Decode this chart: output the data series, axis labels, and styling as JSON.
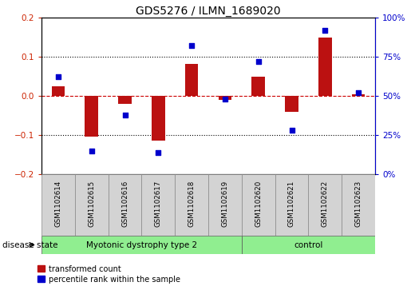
{
  "title": "GDS5276 / ILMN_1689020",
  "samples": [
    "GSM1102614",
    "GSM1102615",
    "GSM1102616",
    "GSM1102617",
    "GSM1102618",
    "GSM1102619",
    "GSM1102620",
    "GSM1102621",
    "GSM1102622",
    "GSM1102623"
  ],
  "transformed_count": [
    0.025,
    -0.105,
    -0.02,
    -0.115,
    0.082,
    -0.01,
    0.048,
    -0.04,
    0.148,
    0.005
  ],
  "percentile_rank": [
    62,
    15,
    38,
    14,
    82,
    48,
    72,
    28,
    92,
    52
  ],
  "group1_label": "Myotonic dystrophy type 2",
  "group1_samples": 6,
  "group2_label": "control",
  "group2_samples": 4,
  "disease_state_label": "disease state",
  "left_ylim": [
    -0.2,
    0.2
  ],
  "right_ylim": [
    0,
    100
  ],
  "left_yticks": [
    -0.2,
    -0.1,
    0.0,
    0.1,
    0.2
  ],
  "right_yticks": [
    0,
    25,
    50,
    75,
    100
  ],
  "bar_color": "#bb1111",
  "dot_color": "#0000cc",
  "zero_line_color": "#cc0000",
  "grid_color": "#000000",
  "bg_color": "#ffffff",
  "label_color_red": "#cc2200",
  "label_color_blue": "#0000cc",
  "cell_color": "#d3d3d3",
  "group_color": "#90ee90",
  "bar_width": 0.4,
  "dot_size": 22
}
